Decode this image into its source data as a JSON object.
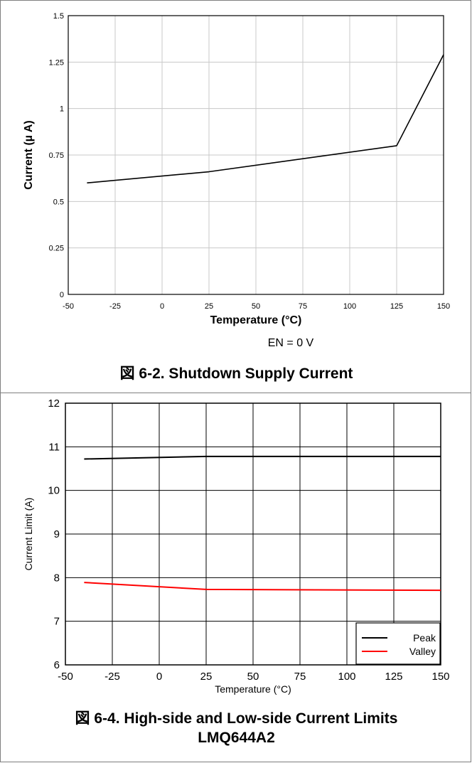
{
  "chart_data": [
    {
      "type": "line",
      "caption": "図 6-2. Shutdown Supply Current",
      "note": "EN = 0 V",
      "xlabel": "Temperature (°C)",
      "ylabel": "Current (µ A)",
      "xlim": [
        -50,
        150
      ],
      "ylim": [
        0,
        1.5
      ],
      "x_ticks": [
        "-50",
        "-25",
        "0",
        "25",
        "50",
        "75",
        "100",
        "125",
        "150"
      ],
      "y_ticks": [
        "0",
        "0.25",
        "0.5",
        "0.75",
        "1",
        "1.25",
        "1.5"
      ],
      "grid": true,
      "series": [
        {
          "color": "#000000",
          "x": [
            -40,
            25,
            125,
            150
          ],
          "y": [
            0.6,
            0.66,
            0.8,
            1.29
          ]
        }
      ]
    },
    {
      "type": "line",
      "caption_line1": "図 6-4. High-side and Low-side Current Limits",
      "caption_line2": "LMQ644A2",
      "xlabel": "Temperature (°C)",
      "ylabel": "Current Limit (A)",
      "xlim": [
        -50,
        150
      ],
      "ylim": [
        6,
        12
      ],
      "x_ticks": [
        "-50",
        "-25",
        "0",
        "25",
        "50",
        "75",
        "100",
        "125",
        "150"
      ],
      "y_ticks": [
        "6",
        "7",
        "8",
        "9",
        "10",
        "11",
        "12"
      ],
      "grid": true,
      "legend": "bottom-right",
      "series": [
        {
          "name": "Peak",
          "color": "#000000",
          "x": [
            -40,
            25,
            150
          ],
          "y": [
            10.72,
            10.78,
            10.78
          ]
        },
        {
          "name": "Valley",
          "color": "#ff0000",
          "x": [
            -40,
            25,
            150
          ],
          "y": [
            7.89,
            7.73,
            7.71
          ]
        }
      ]
    }
  ]
}
